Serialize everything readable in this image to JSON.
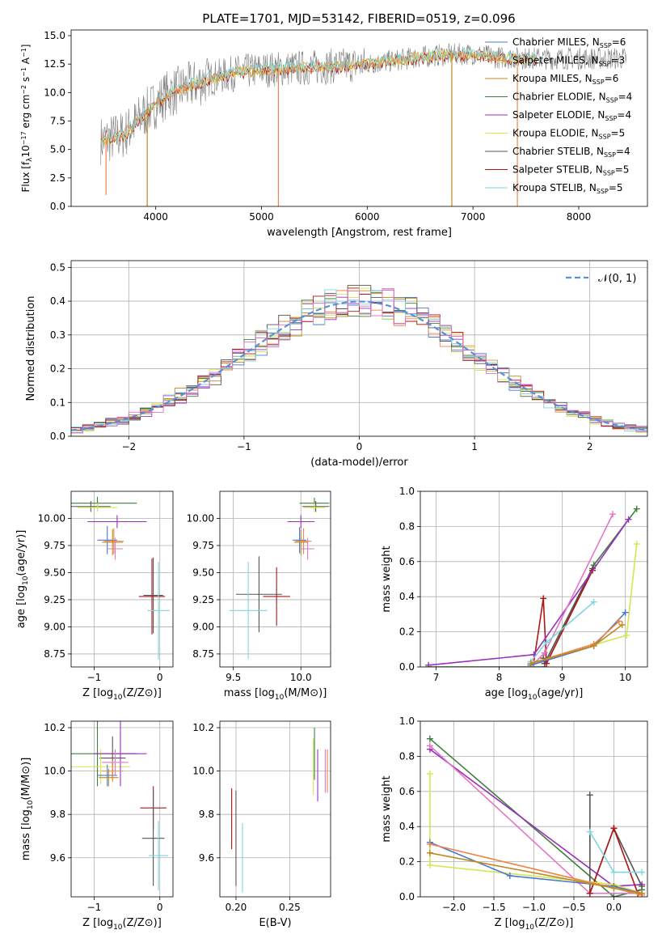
{
  "figure_title": "PLATE=1701, MJD=53142, FIBERID=0519, z=0.096",
  "colors": {
    "chabrier_miles": "#4878d0",
    "salpeter_miles": "#ee854a",
    "kroupa_miles": "#c08a1f",
    "chabrier_elodie": "#3f7f3f",
    "salpeter_elodie": "#9b2fc0",
    "kroupa_elodie": "#d5e64f",
    "chabrier_stelib": "#555555",
    "salpeter_stelib": "#b01515",
    "kroupa_stelib": "#7fd6dc",
    "spectrum": "#808080",
    "gaussian": "#5b8fd9",
    "pink": "#e377c2"
  },
  "chart_data": [
    {
      "id": "spectrum",
      "type": "line",
      "xlabel": "wavelength [Angstrom, rest frame]",
      "ylabel": "Flux [f",
      "ylabel_full": "Flux [fλ10−17 erg cm−2 s−1 A−1]",
      "xlim": [
        3200,
        8650
      ],
      "ylim": [
        0,
        15.5
      ],
      "xticks": [
        "4000",
        "5000",
        "6000",
        "7000",
        "8000"
      ],
      "yticks": [
        "0.0",
        "2.5",
        "5.0",
        "7.5",
        "10.0",
        "12.5",
        "15.0"
      ],
      "grid": false,
      "legend": "top-right",
      "legend_entries": [
        {
          "label": "Chabrier MILES, N",
          "n": "6",
          "color_key": "chabrier_miles"
        },
        {
          "label": "Salpeter MILES, N",
          "n": "3",
          "color_key": "salpeter_miles"
        },
        {
          "label": "Kroupa MILES, N",
          "n": "6",
          "color_key": "kroupa_miles"
        },
        {
          "label": "Chabrier ELODIE, N",
          "n": "4",
          "color_key": "chabrier_elodie"
        },
        {
          "label": "Salpeter ELODIE, N",
          "n": "4",
          "color_key": "salpeter_elodie"
        },
        {
          "label": "Kroupa ELODIE, N",
          "n": "5",
          "color_key": "kroupa_elodie"
        },
        {
          "label": "Chabrier STELIB, N",
          "n": "4",
          "color_key": "chabrier_stelib"
        },
        {
          "label": "Salpeter STELIB, N",
          "n": "5",
          "color_key": "salpeter_stelib"
        },
        {
          "label": "Kroupa STELIB, N",
          "n": "5",
          "color_key": "kroupa_stelib"
        }
      ],
      "legend_sub": "SSP",
      "continuum_x": [
        3500,
        3700,
        3900,
        4100,
        4300,
        4500,
        4800,
        5000,
        5200,
        5500,
        5800,
        6100,
        6400,
        6700,
        7000,
        7200,
        7500
      ],
      "continuum_y": [
        5.8,
        6.3,
        8.2,
        9.8,
        10.5,
        11.2,
        11.8,
        12.0,
        12.1,
        12.2,
        12.4,
        12.6,
        13.0,
        13.3,
        13.4,
        13.1,
        13.0
      ],
      "dips": [
        {
          "x": 3530,
          "y": 1.0
        },
        {
          "x": 3920,
          "y": 0.0
        },
        {
          "x": 5160,
          "y": 0.0
        },
        {
          "x": 6800,
          "y": 0.0
        },
        {
          "x": 7420,
          "y": 0.0
        }
      ]
    },
    {
      "id": "residuals",
      "type": "bar",
      "xlabel": "(data-model)/error",
      "ylabel": "Normed distribution",
      "xlim": [
        -2.5,
        2.5
      ],
      "ylim": [
        0,
        0.52
      ],
      "xticks": [
        "−2",
        "−1",
        "0",
        "1",
        "2"
      ],
      "yticks": [
        "0.0",
        "0.1",
        "0.2",
        "0.3",
        "0.4",
        "0.5"
      ],
      "grid": true,
      "legend": "top-right",
      "legend_label": "𝒩(0, 1)",
      "bin_width": 0.1
    },
    {
      "id": "age_vs_Z",
      "type": "scatter",
      "xlabel": "Z [log",
      "xlabel_full": "Z [log10(Z/Z⊙)]",
      "ylabel": "age  [log",
      "ylabel_full": "age  [log10(age/yr)]",
      "xlim": [
        -1.35,
        0.2
      ],
      "ylim": [
        8.63,
        10.25
      ],
      "xticks": [
        "−1",
        "0"
      ],
      "yticks": [
        "8.75",
        "9.00",
        "9.25",
        "9.50",
        "9.75",
        "10.00"
      ],
      "grid": true,
      "points": [
        {
          "x": -0.95,
          "y": 10.14,
          "xerr": 0.6,
          "yerr": 0.06,
          "color_key": "chabrier_elodie"
        },
        {
          "x": -1.05,
          "y": 10.11,
          "xerr": 0.3,
          "yerr": 0.05,
          "color_key": "chabrier_stelib"
        },
        {
          "x": -0.95,
          "y": 10.1,
          "xerr": 0.3,
          "yerr": 0.04,
          "color_key": "kroupa_elodie"
        },
        {
          "x": -0.65,
          "y": 9.97,
          "xerr": 0.45,
          "yerr": 0.06,
          "color_key": "salpeter_elodie"
        },
        {
          "x": -0.8,
          "y": 9.8,
          "xerr": 0.15,
          "yerr": 0.13,
          "color_key": "chabrier_miles"
        },
        {
          "x": -0.7,
          "y": 9.79,
          "xerr": 0.15,
          "yerr": 0.12,
          "color_key": "salpeter_miles"
        },
        {
          "x": -0.72,
          "y": 9.78,
          "xerr": 0.16,
          "yerr": 0.12,
          "color_key": "kroupa_miles"
        },
        {
          "x": -0.68,
          "y": 9.72,
          "xerr": 0.12,
          "yerr": 0.1,
          "color_key": "pink"
        },
        {
          "x": -0.12,
          "y": 9.28,
          "xerr": 0.2,
          "yerr": 0.35,
          "color_key": "salpeter_stelib"
        },
        {
          "x": -0.1,
          "y": 9.29,
          "xerr": 0.15,
          "yerr": 0.35,
          "color_key": "chabrier_stelib"
        },
        {
          "x": -0.02,
          "y": 9.15,
          "xerr": 0.17,
          "yerr": 0.45,
          "color_key": "kroupa_stelib"
        }
      ]
    },
    {
      "id": "age_vs_mass",
      "type": "scatter",
      "xlabel": "mass [log",
      "xlabel_full": "mass [log10(M/M⊙)]",
      "xlim": [
        9.4,
        10.22
      ],
      "ylim": [
        8.63,
        10.25
      ],
      "xticks": [
        "9.5",
        "10.0"
      ],
      "yticks": [
        "8.75",
        "9.00",
        "9.25",
        "9.50",
        "9.75",
        "10.00"
      ],
      "grid": true,
      "points": [
        {
          "x": 10.1,
          "y": 10.14,
          "xerr": 0.11,
          "yerr": 0.05,
          "color_key": "chabrier_elodie"
        },
        {
          "x": 10.11,
          "y": 10.11,
          "xerr": 0.1,
          "yerr": 0.05,
          "color_key": "chabrier_stelib"
        },
        {
          "x": 10.1,
          "y": 10.1,
          "xerr": 0.08,
          "yerr": 0.04,
          "color_key": "kroupa_elodie"
        },
        {
          "x": 10.0,
          "y": 9.97,
          "xerr": 0.1,
          "yerr": 0.06,
          "color_key": "salpeter_elodie"
        },
        {
          "x": 9.99,
          "y": 9.8,
          "xerr": 0.05,
          "yerr": 0.12,
          "color_key": "chabrier_miles"
        },
        {
          "x": 10.02,
          "y": 9.79,
          "xerr": 0.06,
          "yerr": 0.12,
          "color_key": "salpeter_miles"
        },
        {
          "x": 10.0,
          "y": 9.78,
          "xerr": 0.05,
          "yerr": 0.12,
          "color_key": "kroupa_miles"
        },
        {
          "x": 10.05,
          "y": 9.72,
          "xerr": 0.05,
          "yerr": 0.1,
          "color_key": "pink"
        },
        {
          "x": 9.82,
          "y": 9.28,
          "xerr": 0.1,
          "yerr": 0.27,
          "color_key": "salpeter_stelib"
        },
        {
          "x": 9.69,
          "y": 9.3,
          "xerr": 0.17,
          "yerr": 0.35,
          "color_key": "chabrier_stelib"
        },
        {
          "x": 9.61,
          "y": 9.15,
          "xerr": 0.14,
          "yerr": 0.45,
          "color_key": "kroupa_stelib"
        }
      ]
    },
    {
      "id": "weight_vs_age",
      "type": "line",
      "xlabel": "age  [log",
      "xlabel_full": "age  [log10(age/yr)]",
      "ylabel": "mass weight",
      "xlim": [
        6.75,
        10.35
      ],
      "ylim": [
        0,
        1
      ],
      "xticks": [
        "7",
        "8",
        "9",
        "10"
      ],
      "yticks": [
        "0.0",
        "0.2",
        "0.4",
        "0.6",
        "0.8",
        "1.0"
      ],
      "grid": true,
      "series": [
        {
          "color_key": "chabrier_elodie",
          "x": [
            6.88,
            8.72,
            8.72,
            9.5,
            10.18
          ],
          "y": [
            0.0,
            0.0,
            0.02,
            0.58,
            0.9
          ]
        },
        {
          "color_key": "chabrier_stelib",
          "x": [
            8.7,
            8.72,
            9.48
          ],
          "y": [
            0.05,
            0.02,
            0.56
          ]
        },
        {
          "color_key": "salpeter_stelib",
          "x": [
            8.55,
            8.7,
            8.75,
            9.48
          ],
          "y": [
            0.03,
            0.39,
            0.02,
            0.55
          ]
        },
        {
          "color_key": "salpeter_elodie",
          "x": [
            6.88,
            8.55,
            10.05
          ],
          "y": [
            0.01,
            0.07,
            0.84
          ]
        },
        {
          "color_key": "pink",
          "x": [
            8.55,
            8.72,
            9.8
          ],
          "y": [
            0.02,
            0.08,
            0.87
          ]
        },
        {
          "color_key": "kroupa_stelib",
          "x": [
            8.5,
            8.75,
            9.5
          ],
          "y": [
            0.03,
            0.14,
            0.37
          ]
        },
        {
          "color_key": "kroupa_elodie",
          "x": [
            8.5,
            10.02,
            10.18
          ],
          "y": [
            0.02,
            0.18,
            0.7
          ]
        },
        {
          "color_key": "chabrier_miles",
          "x": [
            8.5,
            9.5,
            10.0
          ],
          "y": [
            0.01,
            0.12,
            0.31
          ]
        },
        {
          "color_key": "salpeter_miles",
          "x": [
            8.5,
            9.5,
            9.9
          ],
          "y": [
            0.02,
            0.13,
            0.26
          ]
        },
        {
          "color_key": "kroupa_miles",
          "x": [
            8.5,
            9.5,
            9.95
          ],
          "y": [
            0.02,
            0.12,
            0.24
          ]
        }
      ]
    },
    {
      "id": "mass_vs_Z",
      "type": "scatter",
      "xlabel": "Z [log",
      "xlabel_full": "Z [log10(Z/Z⊙)]",
      "ylabel": "mass [log",
      "ylabel_full": "mass [log10(M/M⊙)]",
      "xlim": [
        -1.35,
        0.2
      ],
      "ylim": [
        9.42,
        10.23
      ],
      "xticks": [
        "−1",
        "0"
      ],
      "yticks": [
        "9.6",
        "9.8",
        "10.0",
        "10.2"
      ],
      "grid": true,
      "points": [
        {
          "x": -0.95,
          "y": 10.08,
          "xerr": 0.6,
          "yerr": 0.15,
          "color_key": "chabrier_elodie"
        },
        {
          "x": -0.72,
          "y": 10.06,
          "xerr": 0.2,
          "yerr": 0.1,
          "color_key": "chabrier_stelib"
        },
        {
          "x": -0.9,
          "y": 10.02,
          "xerr": 0.45,
          "yerr": 0.08,
          "color_key": "kroupa_elodie"
        },
        {
          "x": -0.6,
          "y": 10.08,
          "xerr": 0.4,
          "yerr": 0.15,
          "color_key": "salpeter_elodie"
        },
        {
          "x": -0.8,
          "y": 9.98,
          "xerr": 0.15,
          "yerr": 0.05,
          "color_key": "chabrier_miles"
        },
        {
          "x": -0.72,
          "y": 10.0,
          "xerr": 0.16,
          "yerr": 0.05,
          "color_key": "salpeter_miles"
        },
        {
          "x": -0.78,
          "y": 9.97,
          "xerr": 0.15,
          "yerr": 0.04,
          "color_key": "kroupa_miles"
        },
        {
          "x": -0.68,
          "y": 10.04,
          "xerr": 0.2,
          "yerr": 0.06,
          "color_key": "pink"
        },
        {
          "x": -0.1,
          "y": 9.83,
          "xerr": 0.2,
          "yerr": 0.1,
          "color_key": "salpeter_stelib"
        },
        {
          "x": -0.1,
          "y": 9.69,
          "xerr": 0.17,
          "yerr": 0.22,
          "color_key": "chabrier_stelib"
        },
        {
          "x": -0.02,
          "y": 9.61,
          "xerr": 0.15,
          "yerr": 0.16,
          "color_key": "kroupa_stelib"
        }
      ]
    },
    {
      "id": "mass_vs_ebv",
      "type": "scatter",
      "xlabel": "E(B-V)",
      "xlim": [
        0.185,
        0.288
      ],
      "ylim": [
        9.42,
        10.23
      ],
      "xticks": [
        "0.20",
        "0.25"
      ],
      "yticks": [
        "9.6",
        "9.8",
        "10.0",
        "10.2"
      ],
      "grid": true,
      "points": [
        {
          "x": 0.273,
          "y": 10.08,
          "yerr": 0.12,
          "color_key": "chabrier_elodie"
        },
        {
          "x": 0.272,
          "y": 10.02,
          "yerr": 0.13,
          "color_key": "kroupa_elodie"
        },
        {
          "x": 0.276,
          "y": 9.98,
          "yerr": 0.12,
          "color_key": "salpeter_elodie"
        },
        {
          "x": 0.283,
          "y": 10.0,
          "yerr": 0.1,
          "color_key": "pink"
        },
        {
          "x": 0.285,
          "y": 10.0,
          "yerr": 0.1,
          "color_key": "salpeter_miles"
        },
        {
          "x": 0.196,
          "y": 9.78,
          "yerr": 0.14,
          "color_key": "salpeter_stelib"
        },
        {
          "x": 0.2,
          "y": 9.69,
          "yerr": 0.22,
          "color_key": "chabrier_stelib"
        },
        {
          "x": 0.206,
          "y": 9.6,
          "yerr": 0.16,
          "color_key": "kroupa_stelib"
        }
      ]
    },
    {
      "id": "weight_vs_Z",
      "type": "line",
      "xlabel": "Z [log",
      "xlabel_full": "Z [log10(Z/Z⊙)]",
      "ylabel": "mass weight",
      "xlim": [
        -2.42,
        0.42
      ],
      "ylim": [
        0,
        1
      ],
      "xticks": [
        "−2.0",
        "−1.5",
        "−1.0",
        "−0.5",
        "0.0"
      ],
      "yticks": [
        "0.0",
        "0.2",
        "0.4",
        "0.6",
        "0.8",
        "1.0"
      ],
      "grid": true,
      "series": [
        {
          "color_key": "chabrier_elodie",
          "x": [
            -2.3,
            0.0,
            0.35
          ],
          "y": [
            0.9,
            0.0,
            0.04
          ]
        },
        {
          "color_key": "salpeter_elodie",
          "x": [
            -2.3,
            0.0,
            0.35
          ],
          "y": [
            0.84,
            0.06,
            0.07
          ]
        },
        {
          "color_key": "pink",
          "x": [
            -2.3,
            -0.3,
            0.35
          ],
          "y": [
            0.86,
            0.02,
            0.02
          ]
        },
        {
          "color_key": "chabrier_stelib",
          "x": [
            -0.3,
            -0.3,
            0.0,
            0.35
          ],
          "y": [
            0.58,
            0.02,
            0.39,
            0.06
          ]
        },
        {
          "color_key": "salpeter_stelib",
          "x": [
            -0.3,
            0.0,
            0.3
          ],
          "y": [
            0.02,
            0.39,
            0.02
          ]
        },
        {
          "color_key": "kroupa_stelib",
          "x": [
            -0.3,
            0.0,
            0.35
          ],
          "y": [
            0.37,
            0.14,
            0.14
          ]
        },
        {
          "color_key": "kroupa_elodie",
          "x": [
            -2.3,
            -2.3,
            0.0,
            0.35
          ],
          "y": [
            0.7,
            0.18,
            0.07,
            0.02
          ]
        },
        {
          "color_key": "chabrier_miles",
          "x": [
            -2.3,
            -1.3,
            0.0,
            0.35
          ],
          "y": [
            0.31,
            0.12,
            0.06,
            0.02
          ]
        },
        {
          "color_key": "salpeter_miles",
          "x": [
            -2.3,
            0.0,
            0.35
          ],
          "y": [
            0.3,
            0.05,
            0.01
          ]
        },
        {
          "color_key": "kroupa_miles",
          "x": [
            -2.3,
            0.0,
            0.35
          ],
          "y": [
            0.25,
            0.05,
            0.02
          ]
        }
      ]
    }
  ]
}
